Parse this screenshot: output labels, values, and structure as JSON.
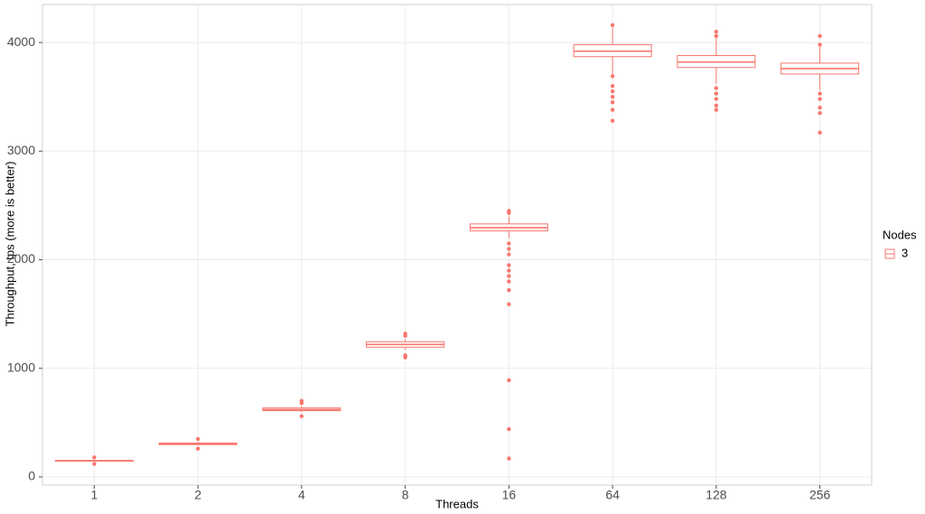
{
  "chart_data": {
    "type": "box",
    "x_label": "Threads",
    "y_label": "Throughput, tps (more is better)",
    "legend_title": "Nodes",
    "legend_position": "right",
    "grid": true,
    "categories": [
      "1",
      "2",
      "4",
      "8",
      "16",
      "64",
      "128",
      "256"
    ],
    "ylim": [
      -75,
      4350
    ],
    "yticks": [
      0,
      1000,
      2000,
      3000,
      4000
    ],
    "series": [
      {
        "name": "3",
        "color": "#F8766D",
        "min": [
          140,
          290,
          595,
          1170,
          2200,
          3700,
          3620,
          3560
        ],
        "q1": [
          145,
          298,
          610,
          1195,
          2265,
          3870,
          3770,
          3710
        ],
        "median": [
          148,
          305,
          620,
          1220,
          2295,
          3920,
          3820,
          3760
        ],
        "q3": [
          152,
          312,
          635,
          1245,
          2330,
          3980,
          3880,
          3810
        ],
        "max": [
          158,
          322,
          650,
          1270,
          2400,
          4140,
          4040,
          3960
        ],
        "outliers": [
          [
            120,
            180
          ],
          [
            260,
            350
          ],
          [
            560,
            680,
            700
          ],
          [
            1100,
            1120,
            1300,
            1320
          ],
          [
            2450,
            2430,
            2150,
            2100,
            2050,
            1950,
            1900,
            1850,
            1800,
            1720,
            1590,
            890,
            440,
            170
          ],
          [
            4160,
            3690,
            3600,
            3550,
            3500,
            3450,
            3380,
            3280
          ],
          [
            4100,
            4060,
            3580,
            3530,
            3480,
            3420,
            3380
          ],
          [
            4060,
            3980,
            3530,
            3480,
            3400,
            3350,
            3170
          ]
        ]
      }
    ]
  }
}
